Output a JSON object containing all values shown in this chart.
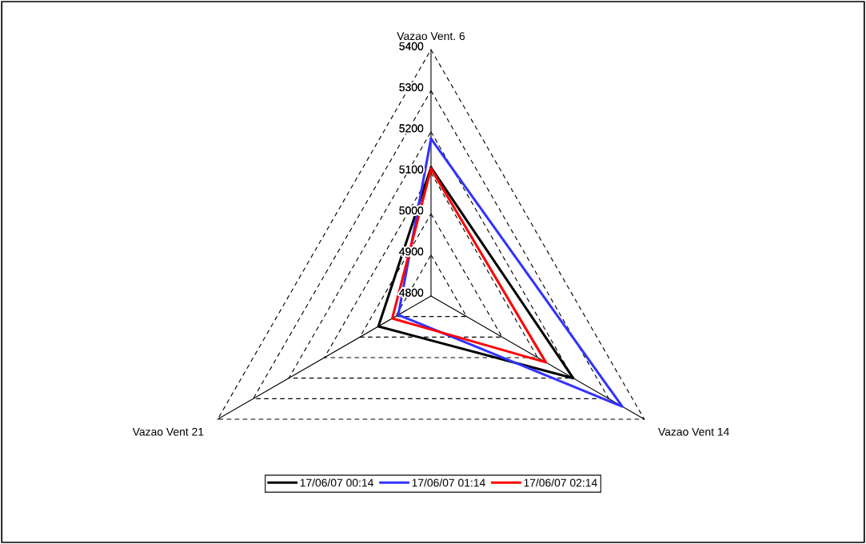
{
  "chart_data": {
    "type": "radar",
    "categories": [
      "Vazao Vent. 6",
      "Vazao Vent 14",
      "Vazao Vent 21"
    ],
    "ylim": [
      4800,
      5400
    ],
    "yticks": [
      4800,
      4900,
      5000,
      5100,
      5200,
      5300,
      5400
    ],
    "grid": true,
    "legend": "bottom",
    "line_style": "solid",
    "marker": "none",
    "series": [
      {
        "name": "17/06/07 00:14",
        "color": "#000000",
        "values": [
          5113,
          5200,
          4948
        ]
      },
      {
        "name": "17/06/07 01:14",
        "color": "#3333ff",
        "values": [
          5183,
          5338,
          4892
        ]
      },
      {
        "name": "17/06/07 02:14",
        "color": "#ff0000",
        "values": [
          5110,
          5123,
          4909
        ]
      }
    ]
  }
}
